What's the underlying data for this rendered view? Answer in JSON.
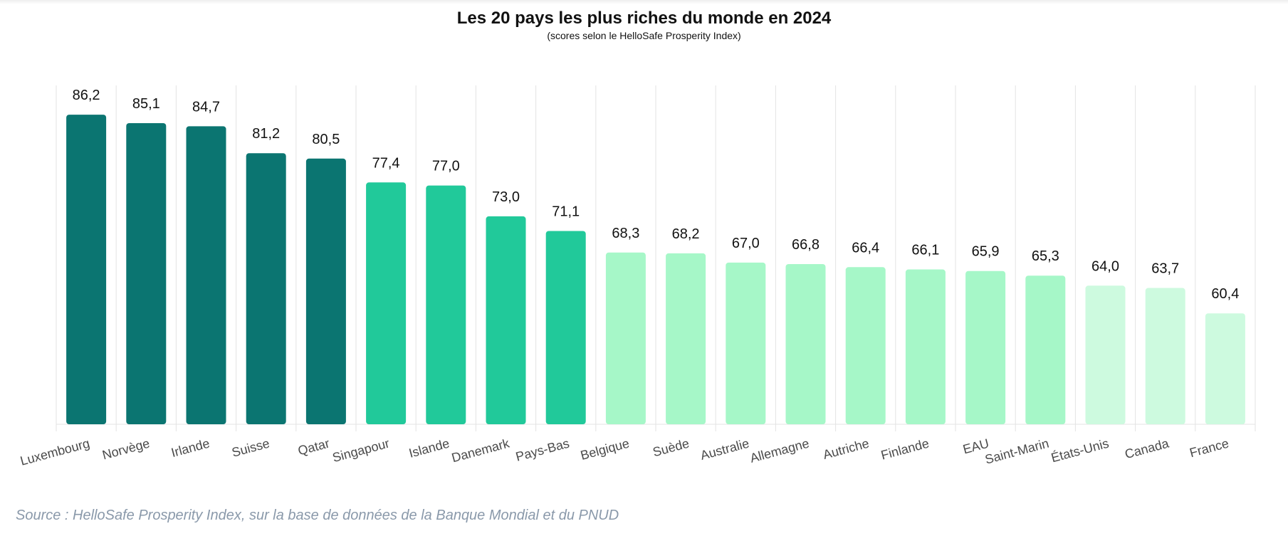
{
  "chart_data": {
    "type": "bar",
    "title": "Les 20 pays les plus riches du monde en 2024",
    "subtitle": "(scores selon le HelloSafe Prosperity Index)",
    "categories": [
      "Luxembourg",
      "Norvège",
      "Irlande",
      "Suisse",
      "Qatar",
      "Singapour",
      "Islande",
      "Danemark",
      "Pays-Bas",
      "Belgique",
      "Suède",
      "Australie",
      "Allemagne",
      "Autriche",
      "Finlande",
      "EAU",
      "Saint-Marin",
      "États-Unis",
      "Canada",
      "France"
    ],
    "values": [
      86.2,
      85.1,
      84.7,
      81.2,
      80.5,
      77.4,
      77.0,
      73.0,
      71.1,
      68.3,
      68.2,
      67.0,
      66.8,
      66.4,
      66.1,
      65.9,
      65.3,
      64.0,
      63.7,
      60.4
    ],
    "value_labels": [
      "86,2",
      "85,1",
      "84,7",
      "81,2",
      "80,5",
      "77,4",
      "77,0",
      "73,0",
      "71,1",
      "68,3",
      "68,2",
      "67,0",
      "66,8",
      "66,4",
      "66,1",
      "65,9",
      "65,3",
      "64,0",
      "63,7",
      "60,4"
    ],
    "bar_colors": [
      "#0b7571",
      "#0b7571",
      "#0b7571",
      "#0b7571",
      "#0b7571",
      "#21c99a",
      "#21c99a",
      "#21c99a",
      "#21c99a",
      "#a6f7c8",
      "#a6f7c8",
      "#a6f7c8",
      "#a6f7c8",
      "#a6f7c8",
      "#a6f7c8",
      "#a6f7c8",
      "#a6f7c8",
      "#cdfadf",
      "#cdfadf",
      "#cdfadf"
    ],
    "ylim": [
      46,
      90
    ],
    "grid": "vertical",
    "xlabel": "",
    "ylabel": ""
  },
  "source": "Source : HelloSafe Prosperity Index, sur la base de données de la Banque Mondial et du PNUD"
}
